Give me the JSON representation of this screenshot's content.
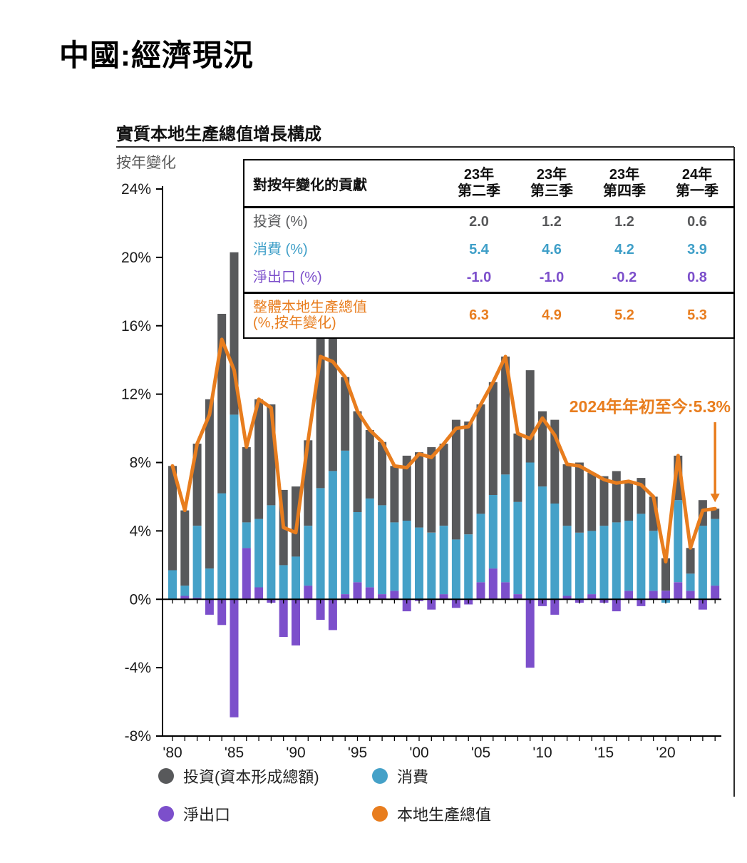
{
  "page": {
    "title": "中國:經濟現況"
  },
  "chart": {
    "title": "實質本地生產總值增長構成",
    "subtitle": "按年變化",
    "annotation": "2024年年初至今:5.3%"
  },
  "table": {
    "header": {
      "label": "對按年變化的貢獻",
      "cols": [
        [
          "23年",
          "第二季"
        ],
        [
          "23年",
          "第三季"
        ],
        [
          "23年",
          "第四季"
        ],
        [
          "24年",
          "第一季"
        ]
      ]
    },
    "rows": [
      {
        "id": "investment",
        "label": "投資 (%)",
        "color": "#58595B",
        "values": [
          "2.0",
          "1.2",
          "1.2",
          "0.6"
        ]
      },
      {
        "id": "consumption",
        "label": "消費 (%)",
        "color": "#3F9FC8",
        "values": [
          "5.4",
          "4.6",
          "4.2",
          "3.9"
        ]
      },
      {
        "id": "net_exports",
        "label": "淨出口 (%)",
        "color": "#7C4FCB",
        "values": [
          "-1.0",
          "-1.0",
          "-0.2",
          "0.8"
        ]
      },
      {
        "id": "gdp",
        "label": "整體本地生產總值 (%,按年變化)",
        "label_lines": [
          "整體本地生產總值",
          "(%,按年變化)"
        ],
        "color": "#E87D1E",
        "values": [
          "6.3",
          "4.9",
          "5.2",
          "5.3"
        ],
        "separator_before": true
      }
    ]
  },
  "legend": [
    {
      "id": "investment",
      "label": "投資(資本形成總額)",
      "color": "#58595B"
    },
    {
      "id": "consumption",
      "label": "消費",
      "color": "#45A1C8"
    },
    {
      "id": "net_exports",
      "label": "淨出口",
      "color": "#7C4FCB"
    },
    {
      "id": "gdp",
      "label": "本地生產總值",
      "color": "#E87D1E"
    }
  ],
  "chart_data": {
    "type": "bar",
    "subtype": "stacked-bars-with-line",
    "title": "實質本地生產總值增長構成",
    "ylabel": "按年變化",
    "ylim": [
      -8,
      24
    ],
    "grid": false,
    "legend_position": "bottom",
    "x": [
      1980,
      1981,
      1982,
      1983,
      1984,
      1985,
      1986,
      1987,
      1988,
      1989,
      1990,
      1991,
      1992,
      1993,
      1994,
      1995,
      1996,
      1997,
      1998,
      1999,
      2000,
      2001,
      2002,
      2003,
      2004,
      2005,
      2006,
      2007,
      2008,
      2009,
      2010,
      2011,
      2012,
      2013,
      2014,
      2015,
      2016,
      2017,
      2018,
      2019,
      2020,
      2021,
      2022,
      2023,
      2024
    ],
    "series": [
      {
        "id": "investment",
        "name": "投資(資本形成總額)",
        "type": "bar",
        "color": "#58595B",
        "values": [
          6.1,
          4.4,
          4.8,
          9.9,
          10.5,
          9.5,
          4.4,
          7.0,
          5.9,
          4.4,
          4.1,
          5.0,
          8.9,
          8.2,
          4.3,
          5.9,
          4.0,
          3.7,
          3.3,
          3.8,
          4.4,
          5.0,
          4.8,
          7.0,
          6.6,
          6.4,
          6.6,
          6.9,
          4.0,
          5.4,
          4.4,
          4.9,
          3.6,
          4.1,
          3.4,
          2.9,
          3.0,
          2.3,
          2.1,
          2.0,
          1.9,
          2.6,
          1.5,
          1.5,
          0.6
        ]
      },
      {
        "id": "consumption",
        "name": "消費",
        "type": "bar",
        "color": "#45A1C8",
        "values": [
          1.7,
          0.6,
          4.2,
          1.8,
          6.2,
          10.8,
          1.5,
          4.0,
          5.5,
          2.0,
          2.5,
          3.5,
          6.5,
          7.5,
          8.4,
          4.1,
          5.2,
          5.2,
          4.0,
          4.6,
          4.2,
          3.9,
          4.0,
          3.5,
          3.8,
          4.0,
          4.3,
          6.3,
          5.4,
          8.0,
          6.6,
          5.6,
          4.1,
          3.9,
          3.7,
          4.3,
          4.5,
          4.1,
          5.0,
          3.5,
          -0.2,
          4.8,
          1.0,
          4.3,
          3.9
        ]
      },
      {
        "id": "net_exports",
        "name": "淨出口",
        "type": "bar",
        "color": "#7C4FCB",
        "values": [
          0.0,
          0.2,
          0.1,
          -0.9,
          -1.5,
          -6.9,
          3.0,
          0.7,
          -0.2,
          -2.2,
          -2.7,
          0.8,
          -1.2,
          -1.8,
          0.3,
          1.0,
          0.7,
          0.3,
          0.5,
          -0.7,
          -0.1,
          -0.6,
          0.3,
          -0.5,
          -0.3,
          1.0,
          1.8,
          1.0,
          0.3,
          -4.0,
          -0.4,
          -0.9,
          0.2,
          -0.2,
          0.3,
          -0.2,
          -0.7,
          0.5,
          -0.4,
          0.5,
          0.5,
          1.0,
          0.5,
          -0.6,
          0.8
        ]
      },
      {
        "id": "gdp",
        "name": "本地生產總值",
        "type": "line",
        "color": "#E87D1E",
        "values": [
          7.8,
          5.2,
          9.1,
          10.8,
          15.2,
          13.4,
          8.9,
          11.7,
          11.2,
          4.2,
          3.9,
          9.3,
          14.2,
          13.9,
          13.0,
          11.0,
          9.9,
          9.2,
          7.8,
          7.7,
          8.5,
          8.3,
          9.1,
          10.0,
          10.1,
          11.4,
          12.7,
          14.2,
          9.7,
          9.4,
          10.6,
          9.6,
          7.9,
          7.8,
          7.4,
          7.0,
          6.8,
          6.9,
          6.7,
          6.0,
          2.2,
          8.4,
          3.0,
          5.2,
          5.3
        ]
      }
    ],
    "stack_order": [
      "net_exports",
      "consumption",
      "investment"
    ],
    "yticks": [
      {
        "v": 24,
        "label": "24%"
      },
      {
        "v": 20,
        "label": "20%"
      },
      {
        "v": 16,
        "label": "16%"
      },
      {
        "v": 12,
        "label": "12%"
      },
      {
        "v": 8,
        "label": "8%"
      },
      {
        "v": 4,
        "label": "4%"
      },
      {
        "v": 0,
        "label": "0%"
      },
      {
        "v": -4,
        "label": "-4%"
      },
      {
        "v": -8,
        "label": "-8%"
      }
    ],
    "xticks": [
      {
        "year": 1980,
        "label": "'80"
      },
      {
        "year": 1985,
        "label": "'85"
      },
      {
        "year": 1990,
        "label": "'90"
      },
      {
        "year": 1995,
        "label": "'95"
      },
      {
        "year": 2000,
        "label": "'00"
      },
      {
        "year": 2005,
        "label": "'05"
      },
      {
        "year": 2010,
        "label": "'10"
      },
      {
        "year": 2015,
        "label": "'15"
      },
      {
        "year": 2020,
        "label": "'20"
      }
    ],
    "annotation": {
      "text": "2024年年初至今:5.3%",
      "year": 2024,
      "value": 5.3
    }
  }
}
